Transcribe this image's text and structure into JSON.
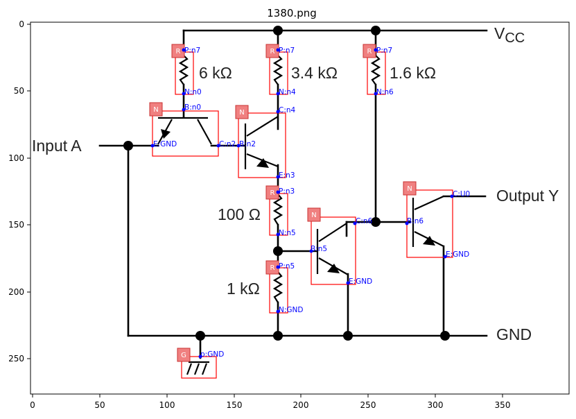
{
  "title": "1380.png",
  "axes": {
    "x_ticks": [
      "0",
      "50",
      "100",
      "150",
      "200",
      "250",
      "300",
      "350"
    ],
    "y_ticks": [
      "0",
      "50",
      "100",
      "150",
      "200",
      "250"
    ]
  },
  "labels": {
    "vcc_main": "V",
    "vcc_sub": "CC",
    "input": "Input A",
    "output": "Output Y",
    "gnd": "GND",
    "r1": "6 kΩ",
    "r2": "3.4 kΩ",
    "r3": "1.6 kΩ",
    "r4": "100 Ω",
    "r5": "1 kΩ"
  },
  "components": [
    {
      "tag": "R",
      "pins": [
        "P:n7",
        "N:n0"
      ]
    },
    {
      "tag": "R",
      "pins": [
        "P:n7",
        "N:n4"
      ]
    },
    {
      "tag": "R",
      "pins": [
        "P:n7",
        "N:n6"
      ]
    },
    {
      "tag": "N",
      "pins": [
        "B:n0",
        "E:GND",
        "C:n2"
      ]
    },
    {
      "tag": "N",
      "pins": [
        "C:n4",
        "B:n2",
        "E:n3"
      ]
    },
    {
      "tag": "R",
      "pins": [
        "P:n3",
        "N:n5"
      ]
    },
    {
      "tag": "R",
      "pins": [
        "P:n5",
        "N:GND"
      ]
    },
    {
      "tag": "N",
      "pins": [
        "C:n6",
        "B:n5",
        "E:GND"
      ]
    },
    {
      "tag": "N",
      "pins": [
        "C:U0",
        "B:n6",
        "E:GND"
      ]
    },
    {
      "tag": "G",
      "pins": [
        "p:GND"
      ]
    }
  ]
}
